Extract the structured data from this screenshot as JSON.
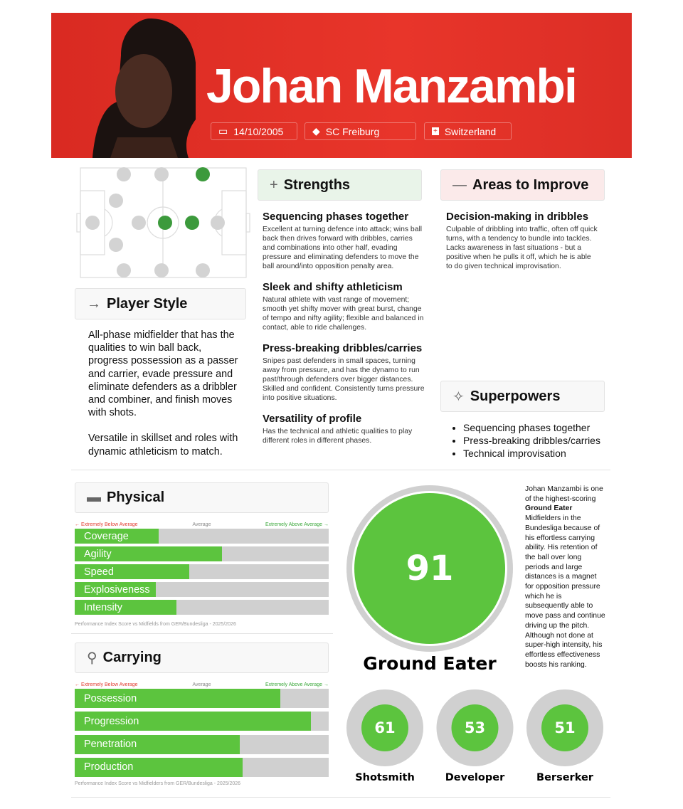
{
  "header": {
    "name": "Johan Manzambi",
    "dob": "14/10/2005",
    "club": "SC Freiburg",
    "country": "Switzerland"
  },
  "player_style": {
    "title": "Player Style",
    "paragraphs": [
      "All-phase midfielder that has the qualities to win ball back, progress possession as a passer and carrier, evade pressure and eliminate defenders as a dribbler and combiner, and finish moves with shots.",
      "Versatile in skillset and roles with dynamic athleticism to match."
    ]
  },
  "strengths": {
    "title": "Strengths",
    "items": [
      {
        "heading": "Sequencing phases together",
        "text": "Excellent at turning defence into attack; wins ball back then drives forward with dribbles, carries and combinations into other half, evading pressure and eliminating defenders to move the ball around/into opposition penalty area."
      },
      {
        "heading": "Sleek and shifty athleticism",
        "text": "Natural athlete with vast range of movement; smooth yet shifty mover with great burst, change of tempo and nifty agility; flexible and balanced in contact, able to ride challenges."
      },
      {
        "heading": "Press-breaking dribbles/carries",
        "text": "Snipes past defenders in small spaces, turning away from pressure, and has the dynamo to run past/through defenders over bigger distances. Skilled and confident. Consistently turns pressure into positive situations."
      },
      {
        "heading": "Versatility of profile",
        "text": "Has the technical and athletic qualities to play different roles in different phases."
      }
    ]
  },
  "areas_to_improve": {
    "title": "Areas to Improve",
    "items": [
      {
        "heading": "Decision-making in dribbles",
        "text": "Culpable of dribbling into traffic, often off quick turns, with a tendency to bundle into tackles. Lacks awareness in fast situations - but a positive when he pulls it off, which he is able to do given technical improvisation."
      }
    ]
  },
  "superpowers": {
    "title": "Superpowers",
    "items": [
      "Sequencing phases together",
      "Press-breaking dribbles/carries",
      "Technical improvisation"
    ]
  },
  "physical": {
    "title": "Physical",
    "scale_labels": {
      "low": "← Extremely Below Average",
      "mid": "Average",
      "high": "Extremely Above Average →"
    },
    "categories": [
      "Coverage",
      "Agility",
      "Speed",
      "Explosiveness",
      "Intensity"
    ],
    "values": [
      33,
      58,
      45,
      32,
      40
    ],
    "xlim": [
      0,
      100
    ],
    "footnote": "Performance Index Score vs Midfields from GER/Bundesliga - 2025/2026"
  },
  "carrying": {
    "title": "Carrying",
    "scale_labels": {
      "low": "← Extremely Below Average",
      "mid": "Average",
      "high": "Extremely Above Average →"
    },
    "categories": [
      "Possession",
      "Progression",
      "Penetration",
      "Production"
    ],
    "values": [
      81,
      93,
      65,
      66
    ],
    "xlim": [
      0,
      100
    ],
    "footnote": "Performance Index Score vs Midfielders from GER/Bundesliga - 2025/2026"
  },
  "archetype": {
    "score": 91,
    "name": "Ground Eater",
    "description": [
      "Johan Manzambi is one of the highest-scoring ",
      "Ground Eater",
      " Midfielders in the Bundesliga because of his effortless carrying ability. His retention of the ball over long periods and large distances is a magnet for opposition pressure which he is subsequently able to move pass and continue driving up the pitch. Although not done at super-high intensity, his effortless effectiveness boosts his ranking."
    ]
  },
  "secondary": [
    {
      "name": "Shotsmith",
      "score": 61
    },
    {
      "name": "Developer",
      "score": 53
    },
    {
      "name": "Berserker",
      "score": 51
    }
  ]
}
